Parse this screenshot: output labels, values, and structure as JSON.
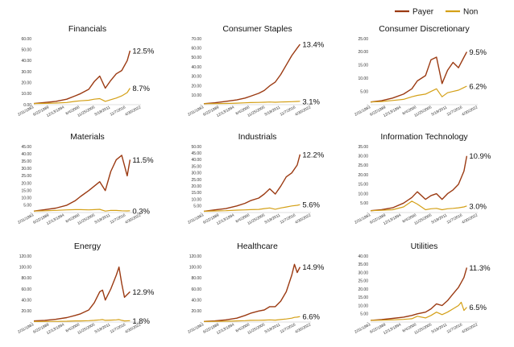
{
  "legend": {
    "items": [
      {
        "label": "Payer",
        "color": "#9b3a12"
      },
      {
        "label": "Non",
        "color": "#d4a017"
      }
    ]
  },
  "x_tick_labels": [
    "2/31/1983",
    "6/22/1989",
    "12/13/1994",
    "6/4/2000",
    "11/25/2005",
    "5/18/2011",
    "11/7/2016",
    "4/30/2022"
  ],
  "chart_data": [
    {
      "type": "line",
      "title": "Financials",
      "ylim": [
        0,
        60
      ],
      "yticks": [
        "0.00",
        "10.00",
        "20.00",
        "30.00",
        "40.00",
        "50.00",
        "60.00"
      ],
      "x": [
        1983,
        1987,
        1991,
        1995,
        1998,
        2000,
        2003,
        2005,
        2007,
        2009,
        2011,
        2013,
        2015,
        2017,
        2018
      ],
      "series": [
        {
          "name": "Payer",
          "values": [
            1.0,
            2.0,
            3.0,
            5.0,
            8.0,
            10.0,
            14.0,
            21.0,
            26.0,
            15.0,
            22.0,
            28.0,
            31.0,
            40.0,
            49.0
          ],
          "end_label": "12.5%"
        },
        {
          "name": "Non",
          "values": [
            1.0,
            1.2,
            1.5,
            2.0,
            3.0,
            3.5,
            4.0,
            5.0,
            5.5,
            3.0,
            4.5,
            6.0,
            8.0,
            11.0,
            15.0
          ],
          "end_label": "8.7%"
        }
      ]
    },
    {
      "type": "line",
      "title": "Consumer Staples",
      "ylim": [
        0,
        70
      ],
      "yticks": [
        "-",
        "10.00",
        "20.00",
        "30.00",
        "40.00",
        "50.00",
        "60.00",
        "70.00"
      ],
      "x": [
        1983,
        1987,
        1991,
        1995,
        1998,
        2000,
        2003,
        2005,
        2007,
        2009,
        2011,
        2013,
        2015,
        2017,
        2018
      ],
      "series": [
        {
          "name": "Payer",
          "values": [
            1.0,
            2.0,
            3.5,
            5.0,
            7.0,
            9.0,
            12.0,
            15.0,
            20.0,
            24.0,
            32.0,
            42.0,
            52.0,
            60.0,
            64.0
          ],
          "end_label": "13.4%"
        },
        {
          "name": "Non",
          "values": [
            1.0,
            1.1,
            1.3,
            1.6,
            2.0,
            2.2,
            2.4,
            2.6,
            2.8,
            2.6,
            2.8,
            3.0,
            3.2,
            3.4,
            3.6
          ],
          "end_label": "3.1%"
        }
      ]
    },
    {
      "type": "line",
      "title": "Consumer Discretionary",
      "ylim": [
        0,
        25
      ],
      "yticks": [
        "-",
        "5.00",
        "10.00",
        "15.00",
        "20.00",
        "25.00"
      ],
      "x": [
        1983,
        1987,
        1991,
        1995,
        1998,
        2000,
        2003,
        2005,
        2007,
        2009,
        2011,
        2013,
        2015,
        2017,
        2018
      ],
      "series": [
        {
          "name": "Payer",
          "values": [
            1.0,
            1.5,
            2.5,
            4.0,
            6.0,
            9.0,
            11.0,
            17.0,
            18.0,
            8.0,
            13.0,
            16.0,
            14.0,
            18.0,
            20.0
          ],
          "end_label": "9.5%"
        },
        {
          "name": "Non",
          "values": [
            1.0,
            1.2,
            1.6,
            2.0,
            3.0,
            3.5,
            4.0,
            5.0,
            6.0,
            3.0,
            4.5,
            5.0,
            5.5,
            6.5,
            7.0
          ],
          "end_label": "6.2%"
        }
      ]
    },
    {
      "type": "line",
      "title": "Materials",
      "ylim": [
        0,
        45
      ],
      "yticks": [
        "-",
        "5.00",
        "10.00",
        "15.00",
        "20.00",
        "25.00",
        "30.00",
        "35.00",
        "40.00",
        "45.00"
      ],
      "x": [
        1983,
        1987,
        1991,
        1995,
        1998,
        2000,
        2003,
        2005,
        2007,
        2009,
        2011,
        2013,
        2015,
        2017,
        2018
      ],
      "series": [
        {
          "name": "Payer",
          "values": [
            1.0,
            2.0,
            3.0,
            5.0,
            8.0,
            11.0,
            15.0,
            18.0,
            21.0,
            15.0,
            28.0,
            36.0,
            39.0,
            25.0,
            36.0
          ],
          "end_label": "11.5%"
        },
        {
          "name": "Non",
          "values": [
            1.0,
            1.2,
            1.5,
            1.8,
            2.0,
            2.0,
            1.8,
            2.0,
            2.2,
            1.0,
            1.5,
            1.4,
            1.2,
            1.1,
            1.2
          ],
          "end_label": "0.3%"
        }
      ]
    },
    {
      "type": "line",
      "title": "Industrials",
      "ylim": [
        0,
        50
      ],
      "yticks": [
        "-",
        "5.00",
        "10.00",
        "15.00",
        "20.00",
        "25.00",
        "30.00",
        "35.00",
        "40.00",
        "45.00",
        "50.00"
      ],
      "x": [
        1983,
        1987,
        1991,
        1995,
        1998,
        2000,
        2003,
        2005,
        2007,
        2009,
        2011,
        2013,
        2015,
        2017,
        2018
      ],
      "series": [
        {
          "name": "Payer",
          "values": [
            1.0,
            2.0,
            3.0,
            5.0,
            7.0,
            9.0,
            11.0,
            14.0,
            18.0,
            14.0,
            20.0,
            27.0,
            30.0,
            36.0,
            44.0
          ],
          "end_label": "12.2%"
        },
        {
          "name": "Non",
          "values": [
            1.0,
            1.2,
            1.4,
            1.8,
            2.0,
            2.2,
            2.4,
            3.0,
            3.5,
            2.5,
            3.5,
            4.2,
            5.0,
            5.5,
            6.0
          ],
          "end_label": "5.6%"
        }
      ]
    },
    {
      "type": "line",
      "title": "Information Technology",
      "ylim": [
        0,
        35
      ],
      "yticks": [
        "-",
        "5.00",
        "10.00",
        "15.00",
        "20.00",
        "25.00",
        "30.00",
        "35.00"
      ],
      "x": [
        1983,
        1987,
        1991,
        1995,
        1998,
        2000,
        2003,
        2005,
        2007,
        2009,
        2011,
        2013,
        2015,
        2017,
        2018
      ],
      "series": [
        {
          "name": "Payer",
          "values": [
            1.0,
            1.5,
            2.5,
            5.0,
            8.0,
            11.0,
            7.0,
            9.0,
            10.0,
            7.0,
            10.0,
            12.0,
            15.0,
            22.0,
            30.0
          ],
          "end_label": "10.9%"
        },
        {
          "name": "Non",
          "values": [
            1.0,
            1.2,
            1.5,
            3.0,
            6.0,
            4.5,
            1.5,
            2.0,
            2.2,
            1.5,
            2.0,
            2.2,
            2.5,
            3.0,
            3.5
          ],
          "end_label": "3.0%"
        }
      ]
    },
    {
      "type": "line",
      "title": "Energy",
      "ylim": [
        0,
        120
      ],
      "yticks": [
        "-",
        "20.00",
        "40.00",
        "60.00",
        "80.00",
        "100.00",
        "120.00"
      ],
      "x": [
        1983,
        1987,
        1991,
        1995,
        1998,
        2000,
        2003,
        2005,
        2007,
        2008,
        2009,
        2011,
        2013,
        2014,
        2015,
        2016,
        2018
      ],
      "series": [
        {
          "name": "Payer",
          "values": [
            2.0,
            3.0,
            5.0,
            8.0,
            12.0,
            15.0,
            22.0,
            35.0,
            55.0,
            58.0,
            40.0,
            60.0,
            85.0,
            100.0,
            70.0,
            45.0,
            55.0
          ],
          "end_label": "12.9%"
        },
        {
          "name": "Non",
          "values": [
            1.0,
            1.0,
            1.2,
            1.5,
            2.0,
            2.0,
            2.5,
            3.0,
            4.0,
            4.5,
            3.0,
            3.5,
            4.0,
            4.5,
            3.0,
            2.0,
            2.5
          ],
          "end_label": "1.8%"
        }
      ]
    },
    {
      "type": "line",
      "title": "Healthcare",
      "ylim": [
        0,
        120
      ],
      "yticks": [
        "-",
        "20.00",
        "40.00",
        "60.00",
        "80.00",
        "100.00",
        "120.00"
      ],
      "x": [
        1983,
        1987,
        1991,
        1995,
        1998,
        2000,
        2003,
        2005,
        2007,
        2009,
        2011,
        2013,
        2015,
        2016,
        2017,
        2018
      ],
      "series": [
        {
          "name": "Payer",
          "values": [
            1.0,
            2.0,
            4.0,
            7.0,
            12.0,
            16.0,
            20.0,
            22.0,
            28.0,
            28.0,
            38.0,
            55.0,
            85.0,
            105.0,
            90.0,
            100.0
          ],
          "end_label": "14.9%"
        },
        {
          "name": "Non",
          "values": [
            1.0,
            1.2,
            1.5,
            2.0,
            2.5,
            3.0,
            3.2,
            3.5,
            4.0,
            3.5,
            4.5,
            5.5,
            7.0,
            8.5,
            9.0,
            10.0
          ],
          "end_label": "6.6%"
        }
      ]
    },
    {
      "type": "line",
      "title": "Utilities",
      "ylim": [
        0,
        40
      ],
      "yticks": [
        "-",
        "5.00",
        "10.00",
        "15.00",
        "20.00",
        "25.00",
        "30.00",
        "35.00",
        "40.00"
      ],
      "x": [
        1983,
        1987,
        1991,
        1995,
        1998,
        2000,
        2003,
        2005,
        2007,
        2009,
        2011,
        2013,
        2015,
        2016,
        2017,
        2018
      ],
      "series": [
        {
          "name": "Payer",
          "values": [
            1.0,
            1.5,
            2.2,
            3.0,
            4.0,
            5.0,
            6.0,
            8.0,
            11.0,
            10.0,
            13.0,
            17.0,
            21.0,
            24.0,
            27.0,
            33.0
          ],
          "end_label": "11.3%"
        },
        {
          "name": "Non",
          "values": [
            1.0,
            1.1,
            1.3,
            1.6,
            2.0,
            3.5,
            2.5,
            4.0,
            6.0,
            4.5,
            6.0,
            8.0,
            10.0,
            12.0,
            7.0,
            9.0
          ],
          "end_label": "6.5%"
        }
      ]
    }
  ]
}
